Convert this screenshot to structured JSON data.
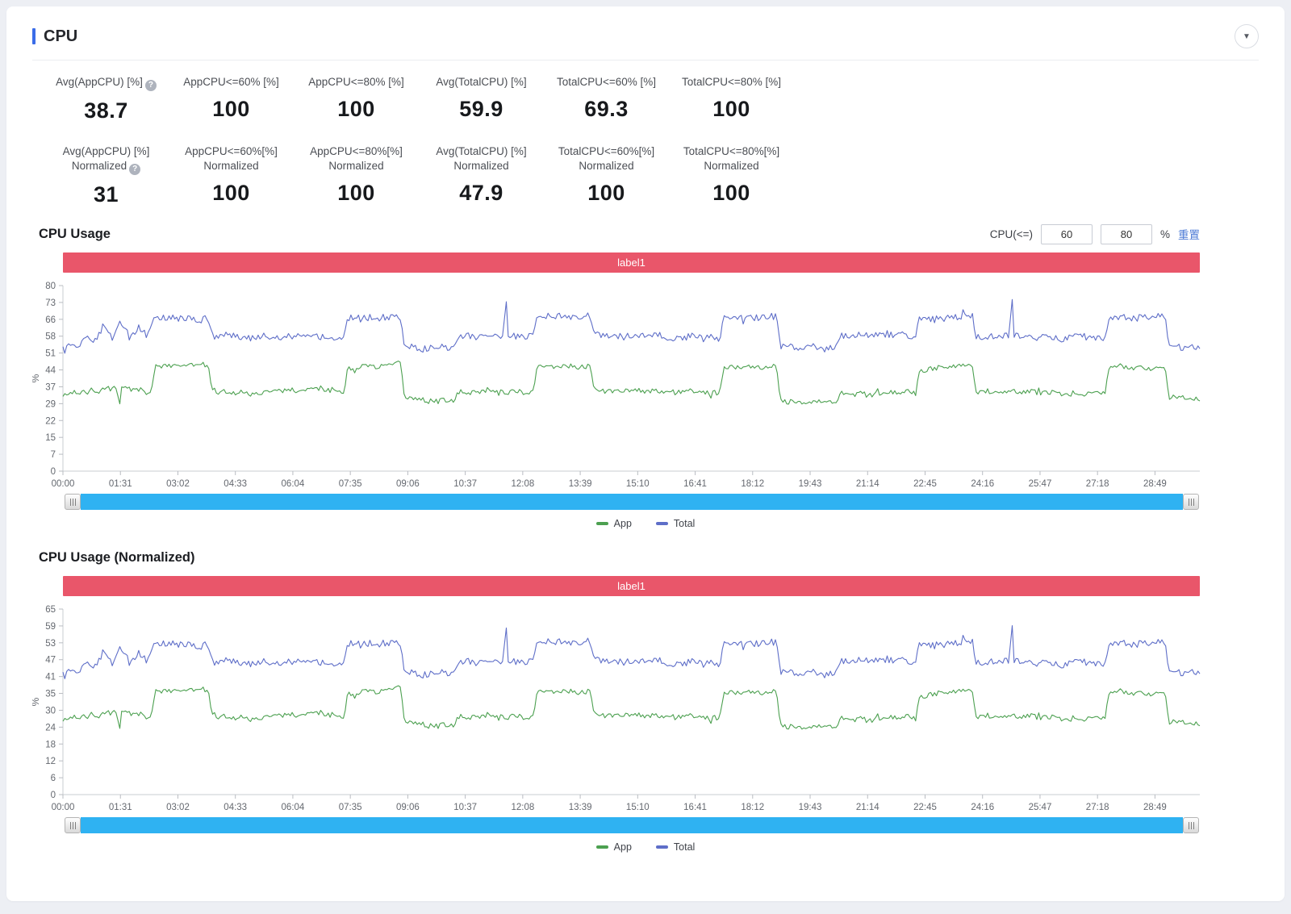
{
  "header": {
    "title": "CPU",
    "collapse_icon": "▼"
  },
  "icons": {
    "help": "?"
  },
  "stats_row1": {
    "items": [
      {
        "lines": [
          "Avg(AppCPU) [%]"
        ],
        "help_on_line": 0,
        "value": "38.7"
      },
      {
        "lines": [
          "AppCPU<=60% [%]"
        ],
        "help_on_line": null,
        "value": "100"
      },
      {
        "lines": [
          "AppCPU<=80% [%]"
        ],
        "help_on_line": null,
        "value": "100"
      },
      {
        "lines": [
          "Avg(TotalCPU) [%]"
        ],
        "help_on_line": null,
        "value": "59.9"
      },
      {
        "lines": [
          "TotalCPU<=60% [%]"
        ],
        "help_on_line": null,
        "value": "69.3"
      },
      {
        "lines": [
          "TotalCPU<=80% [%]"
        ],
        "help_on_line": null,
        "value": "100"
      }
    ]
  },
  "stats_row2": {
    "items": [
      {
        "lines": [
          "Avg(AppCPU) [%]",
          "Normalized"
        ],
        "help_on_line": 1,
        "value": "31"
      },
      {
        "lines": [
          "AppCPU<=60%[%]",
          "Normalized"
        ],
        "help_on_line": null,
        "value": "100"
      },
      {
        "lines": [
          "AppCPU<=80%[%]",
          "Normalized"
        ],
        "help_on_line": null,
        "value": "100"
      },
      {
        "lines": [
          "Avg(TotalCPU) [%]",
          "Normalized"
        ],
        "help_on_line": null,
        "value": "47.9"
      },
      {
        "lines": [
          "TotalCPU<=60%[%]",
          "Normalized"
        ],
        "help_on_line": null,
        "value": "100"
      },
      {
        "lines": [
          "TotalCPU<=80%[%]",
          "Normalized"
        ],
        "help_on_line": null,
        "value": "100"
      }
    ]
  },
  "filter": {
    "label": "CPU(<=)",
    "value1": "60",
    "value2": "80",
    "unit": "%",
    "reset_label": "重置"
  },
  "colors": {
    "accent_blue": "#3a6ce8",
    "banner_red": "#e9566a",
    "scrollbar_blue": "#2fb2f2",
    "app_green": "#4ca050",
    "total_blue": "#5e6ec8",
    "link_blue": "#4d7bd6"
  },
  "chart_data": [
    {
      "type": "line",
      "title": "CPU Usage",
      "banner": "label1",
      "ylabel": "%",
      "ylim": [
        0,
        80
      ],
      "yticks": [
        80,
        73,
        66,
        58,
        51,
        44,
        37,
        29,
        22,
        15,
        7,
        0
      ],
      "x_domain_seconds": [
        0,
        1800
      ],
      "xtick_interval_seconds": 91,
      "xticks": [
        "00:00",
        "01:31",
        "03:02",
        "04:33",
        "06:04",
        "07:35",
        "09:06",
        "10:37",
        "12:08",
        "13:39",
        "15:10",
        "16:41",
        "18:12",
        "19:43",
        "21:14",
        "22:45",
        "24:16",
        "25:47",
        "27:18",
        "28:49"
      ],
      "grid": false,
      "legend_position": "bottom",
      "series": [
        {
          "name": "App",
          "color": "#4ca050",
          "seed": 7,
          "noise": 1.1,
          "profile": [
            [
              0,
              33.5
            ],
            [
              55,
              34.5
            ],
            [
              140,
              34.5
            ],
            [
              146,
              45
            ],
            [
              230,
              45.5
            ],
            [
              236,
              34
            ],
            [
              300,
              34.5
            ],
            [
              445,
              34.5
            ],
            [
              451,
              45
            ],
            [
              535,
              45.5
            ],
            [
              541,
              30.5
            ],
            [
              620,
              30.5
            ],
            [
              626,
              34
            ],
            [
              700,
              34.5
            ],
            [
              745,
              34.5
            ],
            [
              751,
              45
            ],
            [
              835,
              45.5
            ],
            [
              841,
              34
            ],
            [
              1040,
              34.5
            ],
            [
              1046,
              45
            ],
            [
              1130,
              45.5
            ],
            [
              1136,
              30.5
            ],
            [
              1225,
              30.5
            ],
            [
              1231,
              34
            ],
            [
              1350,
              34.5
            ],
            [
              1356,
              45
            ],
            [
              1440,
              45.5
            ],
            [
              1446,
              34
            ],
            [
              1650,
              34
            ],
            [
              1656,
              45
            ],
            [
              1745,
              45.5
            ],
            [
              1751,
              32.5
            ],
            [
              1800,
              31.5
            ]
          ],
          "spikes": [
            [
              90,
              29
            ]
          ]
        },
        {
          "name": "Total",
          "color": "#5e6ec8",
          "seed": 13,
          "noise": 1.4,
          "profile": [
            [
              0,
              54
            ],
            [
              25,
              55
            ],
            [
              38,
              60
            ],
            [
              50,
              56
            ],
            [
              64,
              63
            ],
            [
              78,
              57
            ],
            [
              92,
              64
            ],
            [
              106,
              57
            ],
            [
              120,
              62
            ],
            [
              134,
              58
            ],
            [
              146,
              66
            ],
            [
              230,
              66.5
            ],
            [
              236,
              59
            ],
            [
              300,
              58
            ],
            [
              445,
              58
            ],
            [
              451,
              66
            ],
            [
              535,
              66.5
            ],
            [
              541,
              54
            ],
            [
              620,
              53.5
            ],
            [
              626,
              58
            ],
            [
              745,
              58
            ],
            [
              751,
              66
            ],
            [
              835,
              66.5
            ],
            [
              841,
              58.5
            ],
            [
              900,
              58
            ],
            [
              1040,
              58
            ],
            [
              1046,
              66
            ],
            [
              1130,
              66.5
            ],
            [
              1136,
              54
            ],
            [
              1225,
              53.5
            ],
            [
              1231,
              58
            ],
            [
              1350,
              58.5
            ],
            [
              1356,
              66
            ],
            [
              1440,
              66.5
            ],
            [
              1446,
              58
            ],
            [
              1650,
              58
            ],
            [
              1656,
              66
            ],
            [
              1745,
              67
            ],
            [
              1751,
              54
            ],
            [
              1800,
              52.5
            ]
          ],
          "spikes": [
            [
              701,
              73
            ],
            [
              1503,
              74
            ]
          ]
        }
      ]
    },
    {
      "type": "line",
      "title": "CPU Usage (Normalized)",
      "banner": "label1",
      "ylabel": "%",
      "ylim": [
        0,
        65
      ],
      "yticks": [
        65,
        59,
        53,
        47,
        41,
        35,
        30,
        24,
        18,
        12,
        6,
        0
      ],
      "x_domain_seconds": [
        0,
        1800
      ],
      "xtick_interval_seconds": 91,
      "xticks": [
        "00:00",
        "01:31",
        "03:02",
        "04:33",
        "06:04",
        "07:35",
        "09:06",
        "10:37",
        "12:08",
        "13:39",
        "15:10",
        "16:41",
        "18:12",
        "19:43",
        "21:14",
        "22:45",
        "24:16",
        "25:47",
        "27:18",
        "28:49"
      ],
      "grid": false,
      "legend_position": "bottom",
      "series": [
        {
          "name": "App",
          "color": "#4ca050",
          "seed": 7,
          "noise": 0.88,
          "profile": [
            [
              0,
              26.8
            ],
            [
              55,
              27.6
            ],
            [
              140,
              27.6
            ],
            [
              146,
              36
            ],
            [
              230,
              36.4
            ],
            [
              236,
              27.2
            ],
            [
              300,
              27.6
            ],
            [
              445,
              27.6
            ],
            [
              451,
              36
            ],
            [
              535,
              36.4
            ],
            [
              541,
              24.4
            ],
            [
              620,
              24.4
            ],
            [
              626,
              27.2
            ],
            [
              700,
              27.6
            ],
            [
              745,
              27.6
            ],
            [
              751,
              36
            ],
            [
              835,
              36.4
            ],
            [
              841,
              27.2
            ],
            [
              1040,
              27.6
            ],
            [
              1046,
              36
            ],
            [
              1130,
              36.4
            ],
            [
              1136,
              24.4
            ],
            [
              1225,
              24.4
            ],
            [
              1231,
              27.2
            ],
            [
              1350,
              27.6
            ],
            [
              1356,
              36
            ],
            [
              1440,
              36.4
            ],
            [
              1446,
              27.2
            ],
            [
              1650,
              27.2
            ],
            [
              1656,
              36
            ],
            [
              1745,
              36.4
            ],
            [
              1751,
              26
            ],
            [
              1800,
              25.2
            ]
          ],
          "spikes": [
            [
              90,
              23.2
            ]
          ]
        },
        {
          "name": "Total",
          "color": "#5e6ec8",
          "seed": 13,
          "noise": 1.12,
          "profile": [
            [
              0,
              43.2
            ],
            [
              25,
              44
            ],
            [
              38,
              48
            ],
            [
              50,
              44.8
            ],
            [
              64,
              50.4
            ],
            [
              78,
              45.6
            ],
            [
              92,
              51.2
            ],
            [
              106,
              45.6
            ],
            [
              120,
              49.6
            ],
            [
              134,
              46.4
            ],
            [
              146,
              52.8
            ],
            [
              230,
              53.2
            ],
            [
              236,
              47.2
            ],
            [
              300,
              46.4
            ],
            [
              445,
              46.4
            ],
            [
              451,
              52.8
            ],
            [
              535,
              53.2
            ],
            [
              541,
              43.2
            ],
            [
              620,
              42.8
            ],
            [
              626,
              46.4
            ],
            [
              745,
              46.4
            ],
            [
              751,
              52.8
            ],
            [
              835,
              53.2
            ],
            [
              841,
              46.8
            ],
            [
              900,
              46.4
            ],
            [
              1040,
              46.4
            ],
            [
              1046,
              52.8
            ],
            [
              1130,
              53.2
            ],
            [
              1136,
              43.2
            ],
            [
              1225,
              42.8
            ],
            [
              1231,
              46.4
            ],
            [
              1350,
              46.8
            ],
            [
              1356,
              52.8
            ],
            [
              1440,
              53.2
            ],
            [
              1446,
              46.4
            ],
            [
              1650,
              46.4
            ],
            [
              1656,
              52.8
            ],
            [
              1745,
              53.6
            ],
            [
              1751,
              43.2
            ],
            [
              1800,
              42
            ]
          ],
          "spikes": [
            [
              701,
              58.4
            ],
            [
              1503,
              59.2
            ]
          ]
        }
      ]
    }
  ]
}
